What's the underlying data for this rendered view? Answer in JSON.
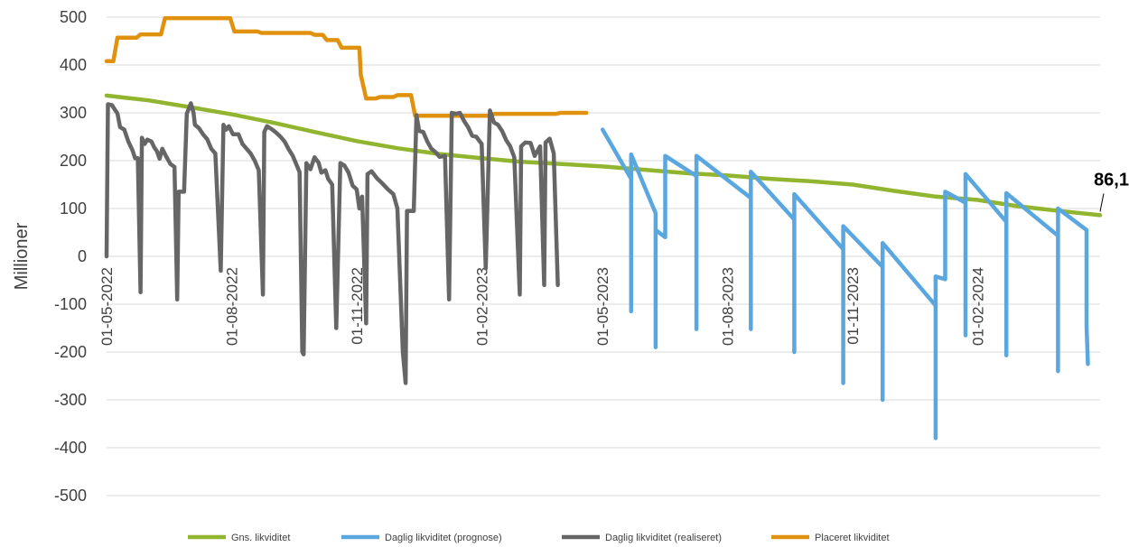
{
  "chart_data": {
    "type": "line",
    "title": "",
    "xlabel": "",
    "ylabel": "Millioner",
    "ylim": [
      -500,
      500
    ],
    "yticks": [
      500,
      400,
      300,
      200,
      100,
      0,
      -100,
      -200,
      -300,
      -400,
      -500
    ],
    "ytick_labels": [
      "500",
      "400",
      "300",
      "200",
      "100",
      "0",
      "-100",
      "-200",
      "-300",
      "-400",
      "-500"
    ],
    "xlim": [
      "2022-05-01",
      "2024-05-01"
    ],
    "xticks": [
      {
        "date": "2022-05-01",
        "label": "01-05-2022"
      },
      {
        "date": "2022-08-01",
        "label": "01-08-2022"
      },
      {
        "date": "2022-11-01",
        "label": "01-11-2022"
      },
      {
        "date": "2023-02-01",
        "label": "01-02-2023"
      },
      {
        "date": "2023-05-01",
        "label": "01-05-2023"
      },
      {
        "date": "2023-08-01",
        "label": "01-08-2023"
      },
      {
        "date": "2023-11-01",
        "label": "01-11-2023"
      },
      {
        "date": "2024-02-01",
        "label": "01-02-2024"
      }
    ],
    "grid": true,
    "legend_position": "bottom",
    "annotation": {
      "text": "86,1",
      "date": "2024-05-01",
      "value": 86.1
    },
    "series": [
      {
        "name": "Gns. likviditet",
        "color": "#92b530",
        "points": [
          [
            "2022-05-01",
            336
          ],
          [
            "2022-06-01",
            326
          ],
          [
            "2022-07-01",
            312
          ],
          [
            "2022-08-01",
            297
          ],
          [
            "2022-09-01",
            279
          ],
          [
            "2022-10-01",
            260
          ],
          [
            "2022-11-01",
            241
          ],
          [
            "2022-12-01",
            226
          ],
          [
            "2023-01-01",
            214
          ],
          [
            "2023-02-01",
            205
          ],
          [
            "2023-03-01",
            198
          ],
          [
            "2023-04-01",
            193
          ],
          [
            "2023-05-01",
            188
          ],
          [
            "2023-06-01",
            181
          ],
          [
            "2023-07-01",
            174
          ],
          [
            "2023-08-01",
            169
          ],
          [
            "2023-09-01",
            162
          ],
          [
            "2023-10-01",
            157
          ],
          [
            "2023-11-01",
            150
          ],
          [
            "2023-12-01",
            137
          ],
          [
            "2024-01-01",
            125
          ],
          [
            "2024-02-01",
            118
          ],
          [
            "2024-03-01",
            105
          ],
          [
            "2024-04-01",
            95
          ],
          [
            "2024-05-01",
            86.1
          ]
        ]
      },
      {
        "name": "Daglig likviditet (prognose)",
        "color": "#5aa7e0",
        "points": [
          [
            "2023-05-01",
            265
          ],
          [
            "2023-05-22",
            162
          ],
          [
            "2023-05-22",
            -115
          ],
          [
            "2023-05-22",
            213
          ],
          [
            "2023-06-09",
            90
          ],
          [
            "2023-06-09",
            -190
          ],
          [
            "2023-06-09",
            55
          ],
          [
            "2023-06-16",
            40
          ],
          [
            "2023-06-16",
            210
          ],
          [
            "2023-07-09",
            168
          ],
          [
            "2023-07-09",
            -152
          ],
          [
            "2023-07-09",
            210
          ],
          [
            "2023-08-18",
            122
          ],
          [
            "2023-08-18",
            -152
          ],
          [
            "2023-08-18",
            177
          ],
          [
            "2023-09-19",
            77
          ],
          [
            "2023-09-19",
            -200
          ],
          [
            "2023-09-19",
            130
          ],
          [
            "2023-10-25",
            15
          ],
          [
            "2023-10-25",
            -265
          ],
          [
            "2023-10-25",
            63
          ],
          [
            "2023-11-23",
            -22
          ],
          [
            "2023-11-23",
            -300
          ],
          [
            "2023-11-23",
            28
          ],
          [
            "2024-01-01",
            -103
          ],
          [
            "2024-01-01",
            -380
          ],
          [
            "2024-01-01",
            -42
          ],
          [
            "2024-01-08",
            -48
          ],
          [
            "2024-01-08",
            135
          ],
          [
            "2024-01-23",
            112
          ],
          [
            "2024-01-23",
            -165
          ],
          [
            "2024-01-23",
            172
          ],
          [
            "2024-02-22",
            72
          ],
          [
            "2024-02-22",
            -207
          ],
          [
            "2024-02-22",
            132
          ],
          [
            "2024-03-31",
            43
          ],
          [
            "2024-03-31",
            -240
          ],
          [
            "2024-03-31",
            100
          ],
          [
            "2024-04-21",
            55
          ],
          [
            "2024-04-21",
            -145
          ],
          [
            "2024-04-22",
            -225
          ]
        ]
      },
      {
        "name": "Daglig likviditet (realiseret)",
        "color": "#666666",
        "points": [
          [
            "2022-05-01",
            0
          ],
          [
            "2022-05-02",
            318
          ],
          [
            "2022-05-05",
            316
          ],
          [
            "2022-05-07",
            307
          ],
          [
            "2022-05-09",
            299
          ],
          [
            "2022-05-11",
            270
          ],
          [
            "2022-05-14",
            265
          ],
          [
            "2022-05-17",
            240
          ],
          [
            "2022-05-20",
            222
          ],
          [
            "2022-05-22",
            205
          ],
          [
            "2022-05-24",
            205
          ],
          [
            "2022-05-26",
            -75
          ],
          [
            "2022-05-27",
            248
          ],
          [
            "2022-05-29",
            235
          ],
          [
            "2022-05-31",
            244
          ],
          [
            "2022-06-03",
            240
          ],
          [
            "2022-06-05",
            228
          ],
          [
            "2022-06-07",
            220
          ],
          [
            "2022-06-09",
            204
          ],
          [
            "2022-06-11",
            225
          ],
          [
            "2022-06-14",
            208
          ],
          [
            "2022-06-17",
            193
          ],
          [
            "2022-06-20",
            187
          ],
          [
            "2022-06-22",
            -90
          ],
          [
            "2022-06-23",
            135
          ],
          [
            "2022-06-27",
            135
          ],
          [
            "2022-06-29",
            298
          ],
          [
            "2022-07-02",
            320
          ],
          [
            "2022-07-04",
            300
          ],
          [
            "2022-07-05",
            275
          ],
          [
            "2022-07-08",
            268
          ],
          [
            "2022-07-11",
            255
          ],
          [
            "2022-07-14",
            245
          ],
          [
            "2022-07-17",
            225
          ],
          [
            "2022-07-20",
            215
          ],
          [
            "2022-07-24",
            -30
          ],
          [
            "2022-07-26",
            275
          ],
          [
            "2022-07-28",
            265
          ],
          [
            "2022-07-30",
            272
          ],
          [
            "2022-08-02",
            255
          ],
          [
            "2022-08-06",
            255
          ],
          [
            "2022-08-09",
            235
          ],
          [
            "2022-08-12",
            225
          ],
          [
            "2022-08-15",
            215
          ],
          [
            "2022-08-18",
            200
          ],
          [
            "2022-08-21",
            180
          ],
          [
            "2022-08-24",
            -80
          ],
          [
            "2022-08-25",
            260
          ],
          [
            "2022-08-27",
            272
          ],
          [
            "2022-08-31",
            265
          ],
          [
            "2022-09-03",
            258
          ],
          [
            "2022-09-06",
            250
          ],
          [
            "2022-09-09",
            240
          ],
          [
            "2022-09-12",
            224
          ],
          [
            "2022-09-15",
            210
          ],
          [
            "2022-09-20",
            176
          ],
          [
            "2022-09-22",
            -200
          ],
          [
            "2022-09-23",
            -205
          ],
          [
            "2022-09-25",
            195
          ],
          [
            "2022-09-28",
            182
          ],
          [
            "2022-10-01",
            207
          ],
          [
            "2022-10-04",
            196
          ],
          [
            "2022-10-06",
            175
          ],
          [
            "2022-10-09",
            180
          ],
          [
            "2022-10-11",
            162
          ],
          [
            "2022-10-14",
            150
          ],
          [
            "2022-10-17",
            -150
          ],
          [
            "2022-10-20",
            195
          ],
          [
            "2022-10-23",
            190
          ],
          [
            "2022-10-26",
            175
          ],
          [
            "2022-10-29",
            148
          ],
          [
            "2022-11-01",
            140
          ],
          [
            "2022-11-03",
            100
          ],
          [
            "2022-11-05",
            125
          ],
          [
            "2022-11-08",
            -140
          ],
          [
            "2022-11-09",
            172
          ],
          [
            "2022-11-12",
            178
          ],
          [
            "2022-11-16",
            163
          ],
          [
            "2022-11-20",
            152
          ],
          [
            "2022-11-24",
            140
          ],
          [
            "2022-11-28",
            130
          ],
          [
            "2022-12-01",
            100
          ],
          [
            "2022-12-05",
            -200
          ],
          [
            "2022-12-07",
            -265
          ],
          [
            "2022-12-08",
            95
          ],
          [
            "2022-12-13",
            95
          ],
          [
            "2022-12-15",
            295
          ],
          [
            "2022-12-17",
            262
          ],
          [
            "2022-12-20",
            260
          ],
          [
            "2022-12-23",
            240
          ],
          [
            "2022-12-26",
            225
          ],
          [
            "2022-12-29",
            218
          ],
          [
            "2023-01-01",
            208
          ],
          [
            "2023-01-05",
            210
          ],
          [
            "2023-01-08",
            -90
          ],
          [
            "2023-01-10",
            300
          ],
          [
            "2023-01-13",
            298
          ],
          [
            "2023-01-16",
            300
          ],
          [
            "2023-01-19",
            283
          ],
          [
            "2023-01-22",
            270
          ],
          [
            "2023-01-25",
            252
          ],
          [
            "2023-01-28",
            250
          ],
          [
            "2023-02-01",
            235
          ],
          [
            "2023-02-04",
            -25
          ],
          [
            "2023-02-07",
            305
          ],
          [
            "2023-02-10",
            280
          ],
          [
            "2023-02-13",
            275
          ],
          [
            "2023-02-16",
            262
          ],
          [
            "2023-02-19",
            243
          ],
          [
            "2023-02-22",
            230
          ],
          [
            "2023-02-25",
            207
          ],
          [
            "2023-03-01",
            -80
          ],
          [
            "2023-03-02",
            230
          ],
          [
            "2023-03-05",
            238
          ],
          [
            "2023-03-09",
            237
          ],
          [
            "2023-03-12",
            210
          ],
          [
            "2023-03-16",
            230
          ],
          [
            "2023-03-19",
            -60
          ],
          [
            "2023-03-20",
            238
          ],
          [
            "2023-03-23",
            246
          ],
          [
            "2023-03-26",
            215
          ],
          [
            "2023-03-29",
            -60
          ]
        ]
      },
      {
        "name": "Placeret likviditet",
        "color": "#e0920e",
        "points": [
          [
            "2022-05-01",
            408
          ],
          [
            "2022-05-06",
            408
          ],
          [
            "2022-05-09",
            457
          ],
          [
            "2022-05-23",
            457
          ],
          [
            "2022-05-26",
            464
          ],
          [
            "2022-06-10",
            464
          ],
          [
            "2022-06-13",
            498
          ],
          [
            "2022-07-31",
            498
          ],
          [
            "2022-08-03",
            470
          ],
          [
            "2022-08-20",
            470
          ],
          [
            "2022-08-23",
            467
          ],
          [
            "2022-09-28",
            467
          ],
          [
            "2022-10-01",
            463
          ],
          [
            "2022-10-07",
            463
          ],
          [
            "2022-10-10",
            452
          ],
          [
            "2022-10-18",
            452
          ],
          [
            "2022-10-21",
            436
          ],
          [
            "2022-11-03",
            436
          ],
          [
            "2022-11-04",
            380
          ],
          [
            "2022-11-08",
            330
          ],
          [
            "2022-11-15",
            330
          ],
          [
            "2022-11-18",
            333
          ],
          [
            "2022-11-28",
            333
          ],
          [
            "2022-12-01",
            337
          ],
          [
            "2022-12-11",
            337
          ],
          [
            "2022-12-14",
            294
          ],
          [
            "2023-02-08",
            294
          ],
          [
            "2023-02-10",
            298
          ],
          [
            "2023-03-28",
            298
          ],
          [
            "2023-03-31",
            300
          ],
          [
            "2023-04-19",
            300
          ]
        ]
      }
    ]
  }
}
